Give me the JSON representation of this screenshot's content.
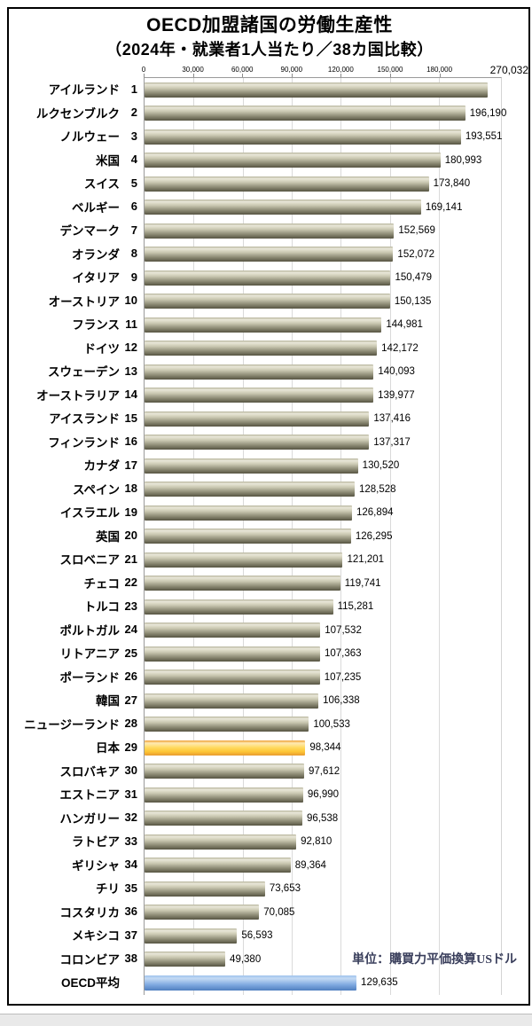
{
  "title": {
    "line1": "OECD加盟諸国の労働生産性",
    "line2": "（2024年・就業者1人当たり／38カ国比較）"
  },
  "note": "単位：購買力平価換算USドル",
  "chart_data": {
    "type": "bar",
    "orientation": "horizontal",
    "title": "OECD加盟諸国の労働生産性（2024年・就業者1人当たり／38カ国比較）",
    "unit": "購買力平価換算USドル",
    "top_value_label": "270,032",
    "axis": {
      "max": 218000,
      "bar_cap": 210000,
      "ticks": [
        {
          "value": 0,
          "label": "0"
        },
        {
          "value": 30000,
          "label": "30,000"
        },
        {
          "value": 60000,
          "label": "60,000"
        },
        {
          "value": 90000,
          "label": "90,000"
        },
        {
          "value": 120000,
          "label": "120,000"
        },
        {
          "value": 150000,
          "label": "150,000"
        },
        {
          "value": 180000,
          "label": "180,000"
        }
      ]
    },
    "rows": [
      {
        "name": "アイルランド",
        "rank": "1",
        "value": 270032,
        "label": "270,032",
        "highlight": "default",
        "value_position": "axis"
      },
      {
        "name": "ルクセンブルク",
        "rank": "2",
        "value": 196190,
        "label": "196,190",
        "highlight": "default",
        "value_position": "right"
      },
      {
        "name": "ノルウェー",
        "rank": "3",
        "value": 193551,
        "label": "193,551",
        "highlight": "default",
        "value_position": "right"
      },
      {
        "name": "米国",
        "rank": "4",
        "value": 180993,
        "label": "180,993",
        "highlight": "default",
        "value_position": "right"
      },
      {
        "name": "スイス",
        "rank": "5",
        "value": 173840,
        "label": "173,840",
        "highlight": "default",
        "value_position": "right"
      },
      {
        "name": "ベルギー",
        "rank": "6",
        "value": 169141,
        "label": "169,141",
        "highlight": "default",
        "value_position": "right"
      },
      {
        "name": "デンマーク",
        "rank": "7",
        "value": 152569,
        "label": "152,569",
        "highlight": "default",
        "value_position": "right"
      },
      {
        "name": "オランダ",
        "rank": "8",
        "value": 152072,
        "label": "152,072",
        "highlight": "default",
        "value_position": "right"
      },
      {
        "name": "イタリア",
        "rank": "9",
        "value": 150479,
        "label": "150,479",
        "highlight": "default",
        "value_position": "right"
      },
      {
        "name": "オーストリア",
        "rank": "10",
        "value": 150135,
        "label": "150,135",
        "highlight": "default",
        "value_position": "right"
      },
      {
        "name": "フランス",
        "rank": "11",
        "value": 144981,
        "label": "144,981",
        "highlight": "default",
        "value_position": "right"
      },
      {
        "name": "ドイツ",
        "rank": "12",
        "value": 142172,
        "label": "142,172",
        "highlight": "default",
        "value_position": "right"
      },
      {
        "name": "スウェーデン",
        "rank": "13",
        "value": 140093,
        "label": "140,093",
        "highlight": "default",
        "value_position": "right"
      },
      {
        "name": "オーストラリア",
        "rank": "14",
        "value": 139977,
        "label": "139,977",
        "highlight": "default",
        "value_position": "right"
      },
      {
        "name": "アイスランド",
        "rank": "15",
        "value": 137416,
        "label": "137,416",
        "highlight": "default",
        "value_position": "right"
      },
      {
        "name": "フィンランド",
        "rank": "16",
        "value": 137317,
        "label": "137,317",
        "highlight": "default",
        "value_position": "right"
      },
      {
        "name": "カナダ",
        "rank": "17",
        "value": 130520,
        "label": "130,520",
        "highlight": "default",
        "value_position": "right"
      },
      {
        "name": "スペイン",
        "rank": "18",
        "value": 128528,
        "label": "128,528",
        "highlight": "default",
        "value_position": "right"
      },
      {
        "name": "イスラエル",
        "rank": "19",
        "value": 126894,
        "label": "126,894",
        "highlight": "default",
        "value_position": "right"
      },
      {
        "name": "英国",
        "rank": "20",
        "value": 126295,
        "label": "126,295",
        "highlight": "default",
        "value_position": "right"
      },
      {
        "name": "スロベニア",
        "rank": "21",
        "value": 121201,
        "label": "121,201",
        "highlight": "default",
        "value_position": "right"
      },
      {
        "name": "チェコ",
        "rank": "22",
        "value": 119741,
        "label": "119,741",
        "highlight": "default",
        "value_position": "right"
      },
      {
        "name": "トルコ",
        "rank": "23",
        "value": 115281,
        "label": "115,281",
        "highlight": "default",
        "value_position": "right"
      },
      {
        "name": "ポルトガル",
        "rank": "24",
        "value": 107532,
        "label": "107,532",
        "highlight": "default",
        "value_position": "right"
      },
      {
        "name": "リトアニア",
        "rank": "25",
        "value": 107363,
        "label": "107,363",
        "highlight": "default",
        "value_position": "right"
      },
      {
        "name": "ポーランド",
        "rank": "26",
        "value": 107235,
        "label": "107,235",
        "highlight": "default",
        "value_position": "right"
      },
      {
        "name": "韓国",
        "rank": "27",
        "value": 106338,
        "label": "106,338",
        "highlight": "default",
        "value_position": "right"
      },
      {
        "name": "ニュージーランド",
        "rank": "28",
        "value": 100533,
        "label": "100,533",
        "highlight": "default",
        "value_position": "right"
      },
      {
        "name": "日本",
        "rank": "29",
        "value": 98344,
        "label": "98,344",
        "highlight": "japan",
        "value_position": "right"
      },
      {
        "name": "スロバキア",
        "rank": "30",
        "value": 97612,
        "label": "97,612",
        "highlight": "default",
        "value_position": "right"
      },
      {
        "name": "エストニア",
        "rank": "31",
        "value": 96990,
        "label": "96,990",
        "highlight": "default",
        "value_position": "right"
      },
      {
        "name": "ハンガリー",
        "rank": "32",
        "value": 96538,
        "label": "96,538",
        "highlight": "default",
        "value_position": "right"
      },
      {
        "name": "ラトビア",
        "rank": "33",
        "value": 92810,
        "label": "92,810",
        "highlight": "default",
        "value_position": "right"
      },
      {
        "name": "ギリシャ",
        "rank": "34",
        "value": 89364,
        "label": "89,364",
        "highlight": "default",
        "value_position": "right"
      },
      {
        "name": "チリ",
        "rank": "35",
        "value": 73653,
        "label": "73,653",
        "highlight": "default",
        "value_position": "right"
      },
      {
        "name": "コスタリカ",
        "rank": "36",
        "value": 70085,
        "label": "70,085",
        "highlight": "default",
        "value_position": "right"
      },
      {
        "name": "メキシコ",
        "rank": "37",
        "value": 56593,
        "label": "56,593",
        "highlight": "default",
        "value_position": "right"
      },
      {
        "name": "コロンビア",
        "rank": "38",
        "value": 49380,
        "label": "49,380",
        "highlight": "default",
        "value_position": "right"
      },
      {
        "name": "OECD平均",
        "rank": "",
        "value": 129635,
        "label": "129,635",
        "highlight": "oecd",
        "value_position": "right"
      }
    ]
  },
  "colors": {
    "bar_default_light": "#e9e7d9",
    "bar_default_dark": "#565442",
    "bar_japan": "#fdc535",
    "bar_oecd": "#6f9fdc",
    "gridline": "#dadada",
    "axis_line": "#9a9a9a",
    "note_text": "#3a3f5c"
  }
}
